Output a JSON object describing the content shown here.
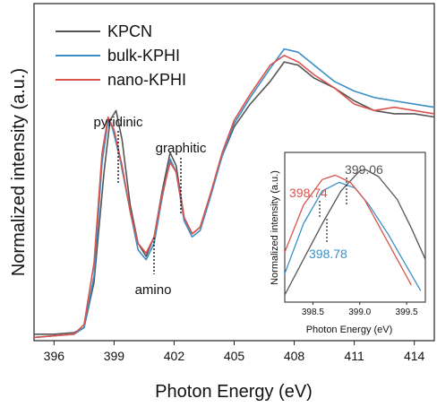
{
  "chart_data": [
    {
      "type": "line",
      "title": "",
      "xlabel": "Photon Energy (eV)",
      "ylabel": "Normalized intensity (a.u.)",
      "xlim": [
        395,
        415
      ],
      "ylim": [
        0,
        1.04
      ],
      "x_ticks": [
        396,
        399,
        402,
        405,
        408,
        411,
        414
      ],
      "grid": false,
      "legend_position": "top-left",
      "series": [
        {
          "name": "KPCN",
          "color": "#555555",
          "points": [
            [
              395,
              0.02
            ],
            [
              396,
              0.02
            ],
            [
              397,
              0.025
            ],
            [
              397.5,
              0.04
            ],
            [
              398,
              0.18
            ],
            [
              398.5,
              0.52
            ],
            [
              398.8,
              0.68
            ],
            [
              399.1,
              0.71
            ],
            [
              399.4,
              0.62
            ],
            [
              399.8,
              0.42
            ],
            [
              400.2,
              0.3
            ],
            [
              400.6,
              0.26
            ],
            [
              401,
              0.32
            ],
            [
              401.4,
              0.46
            ],
            [
              401.8,
              0.58
            ],
            [
              402.1,
              0.54
            ],
            [
              402.5,
              0.38
            ],
            [
              402.9,
              0.33
            ],
            [
              403.3,
              0.35
            ],
            [
              403.8,
              0.45
            ],
            [
              404.4,
              0.57
            ],
            [
              405,
              0.66
            ],
            [
              405.8,
              0.73
            ],
            [
              406.8,
              0.8
            ],
            [
              407.5,
              0.86
            ],
            [
              408.2,
              0.85
            ],
            [
              409,
              0.81
            ],
            [
              410,
              0.78
            ],
            [
              411,
              0.74
            ],
            [
              412,
              0.71
            ],
            [
              413,
              0.7
            ],
            [
              414,
              0.7
            ],
            [
              415,
              0.69
            ]
          ]
        },
        {
          "name": "bulk-KPHI",
          "color": "#3a8fc7",
          "points": [
            [
              395,
              0.01
            ],
            [
              396,
              0.015
            ],
            [
              397,
              0.02
            ],
            [
              397.5,
              0.04
            ],
            [
              398,
              0.2
            ],
            [
              398.4,
              0.55
            ],
            [
              398.7,
              0.68
            ],
            [
              398.9,
              0.66
            ],
            [
              399.3,
              0.56
            ],
            [
              399.8,
              0.4
            ],
            [
              400.2,
              0.28
            ],
            [
              400.6,
              0.25
            ],
            [
              401,
              0.3
            ],
            [
              401.4,
              0.44
            ],
            [
              401.8,
              0.56
            ],
            [
              402.1,
              0.52
            ],
            [
              402.5,
              0.37
            ],
            [
              402.9,
              0.32
            ],
            [
              403.3,
              0.34
            ],
            [
              403.8,
              0.44
            ],
            [
              404.4,
              0.57
            ],
            [
              405,
              0.67
            ],
            [
              405.8,
              0.75
            ],
            [
              406.8,
              0.84
            ],
            [
              407.5,
              0.9
            ],
            [
              408.2,
              0.89
            ],
            [
              409,
              0.85
            ],
            [
              410,
              0.8
            ],
            [
              411,
              0.77
            ],
            [
              412,
              0.75
            ],
            [
              413,
              0.74
            ],
            [
              414,
              0.73
            ],
            [
              415,
              0.72
            ]
          ]
        },
        {
          "name": "nano-KPHI",
          "color": "#d9544d",
          "points": [
            [
              395,
              0.01
            ],
            [
              396,
              0.015
            ],
            [
              397,
              0.02
            ],
            [
              397.5,
              0.05
            ],
            [
              398,
              0.24
            ],
            [
              398.4,
              0.58
            ],
            [
              398.7,
              0.69
            ],
            [
              399,
              0.65
            ],
            [
              399.4,
              0.54
            ],
            [
              399.8,
              0.4
            ],
            [
              400.2,
              0.3
            ],
            [
              400.6,
              0.27
            ],
            [
              401,
              0.32
            ],
            [
              401.4,
              0.45
            ],
            [
              401.8,
              0.55
            ],
            [
              402.1,
              0.52
            ],
            [
              402.5,
              0.38
            ],
            [
              402.9,
              0.33
            ],
            [
              403.3,
              0.35
            ],
            [
              403.8,
              0.45
            ],
            [
              404.4,
              0.58
            ],
            [
              405,
              0.68
            ],
            [
              405.8,
              0.76
            ],
            [
              406.8,
              0.85
            ],
            [
              407.5,
              0.88
            ],
            [
              408.2,
              0.86
            ],
            [
              409,
              0.82
            ],
            [
              410,
              0.78
            ],
            [
              411,
              0.73
            ],
            [
              412,
              0.71
            ],
            [
              413,
              0.72
            ],
            [
              414,
              0.71
            ],
            [
              415,
              0.7
            ]
          ]
        }
      ],
      "annotations": [
        {
          "text": "pyridinic",
          "x": 398.7
        },
        {
          "text": "amino",
          "x": 400.7
        },
        {
          "text": "graphitic",
          "x": 401.9
        }
      ]
    },
    {
      "type": "line",
      "title": "",
      "xlabel": "Photon Energy (eV)",
      "ylabel": "Normalized intensity (a.u.)",
      "xlim": [
        398.2,
        399.7
      ],
      "ylim": [
        0,
        1.05
      ],
      "x_ticks": [
        398.5,
        399.0,
        399.5
      ],
      "x_tick_labels": [
        "398.5",
        "399.0",
        "399.5"
      ],
      "series": [
        {
          "name": "KPCN",
          "color": "#555555",
          "points": [
            [
              398.2,
              0.05
            ],
            [
              398.4,
              0.3
            ],
            [
              398.6,
              0.55
            ],
            [
              398.8,
              0.78
            ],
            [
              399.0,
              0.92
            ],
            [
              399.06,
              0.93
            ],
            [
              399.2,
              0.88
            ],
            [
              399.4,
              0.72
            ],
            [
              399.55,
              0.52
            ],
            [
              399.7,
              0.3
            ]
          ]
        },
        {
          "name": "bulk-KPHI",
          "color": "#3a8fc7",
          "points": [
            [
              398.2,
              0.2
            ],
            [
              398.4,
              0.55
            ],
            [
              398.6,
              0.78
            ],
            [
              398.78,
              0.84
            ],
            [
              398.95,
              0.8
            ],
            [
              399.1,
              0.68
            ],
            [
              399.3,
              0.48
            ],
            [
              399.5,
              0.25
            ],
            [
              399.65,
              0.08
            ]
          ]
        },
        {
          "name": "nano-KPHI",
          "color": "#d9544d",
          "points": [
            [
              398.2,
              0.35
            ],
            [
              398.4,
              0.68
            ],
            [
              398.6,
              0.86
            ],
            [
              398.74,
              0.89
            ],
            [
              398.9,
              0.84
            ],
            [
              399.05,
              0.72
            ],
            [
              399.2,
              0.54
            ],
            [
              399.4,
              0.3
            ],
            [
              399.55,
              0.12
            ]
          ]
        }
      ],
      "peak_labels": [
        {
          "text": "399.06",
          "x": 399.06,
          "color": "#555555"
        },
        {
          "text": "398.74",
          "x": 398.74,
          "color": "#d9544d"
        },
        {
          "text": "398.78",
          "x": 398.78,
          "color": "#3a8fc7"
        }
      ]
    }
  ]
}
